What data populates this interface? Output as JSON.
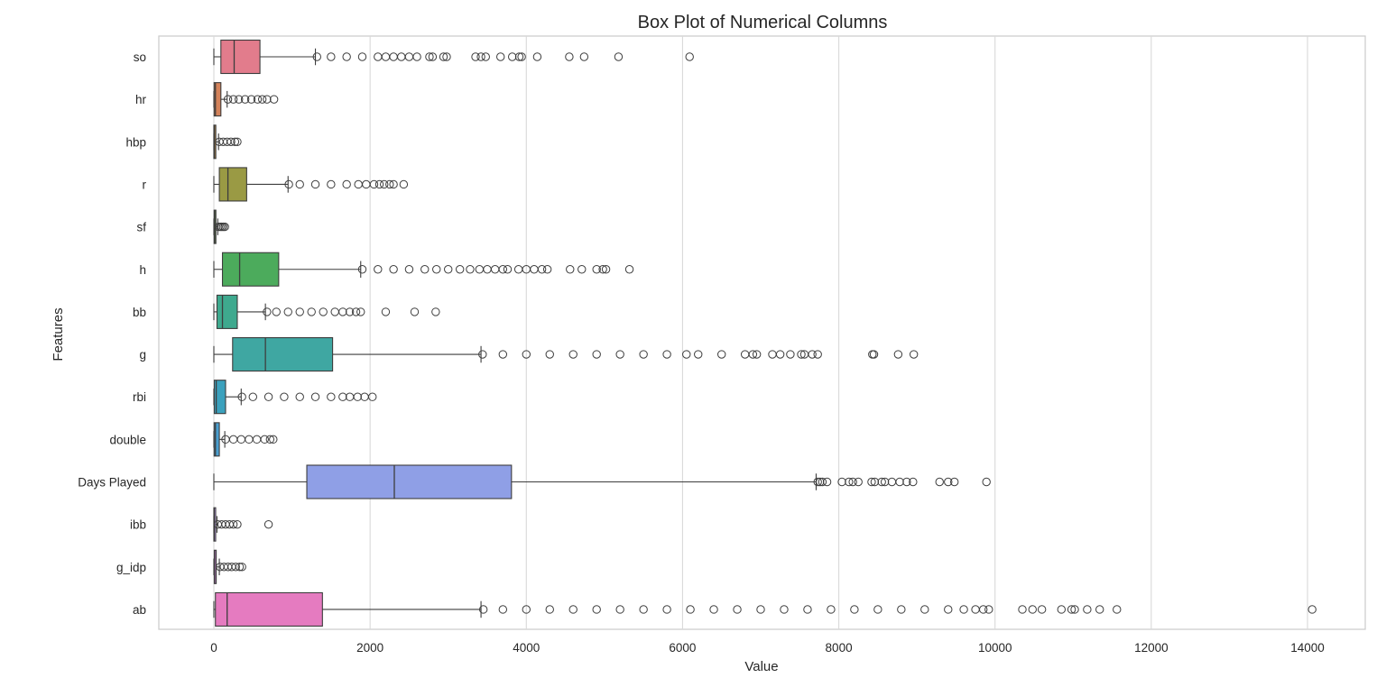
{
  "chart_data": {
    "type": "box",
    "orientation": "horizontal",
    "title": "Box Plot of Numerical Columns",
    "xlabel": "Value",
    "ylabel": "Features",
    "xlim": [
      -700,
      14700
    ],
    "xticks": [
      0,
      2000,
      4000,
      6000,
      8000,
      10000,
      12000,
      14000
    ],
    "xtick_labels": [
      "0",
      "2000",
      "4000",
      "6000",
      "8000",
      "10000",
      "12000",
      "14000"
    ],
    "grid": "vertical",
    "legend": "none",
    "series": [
      {
        "name": "so",
        "color": "#e27c8c",
        "min": 0,
        "q1": 90,
        "median": 260,
        "q3": 590,
        "max": 1300,
        "outliers": [
          1320,
          1500,
          1700,
          1900,
          2100,
          2200,
          2300,
          2400,
          2500,
          2600,
          2760,
          2800,
          2940,
          2980,
          3350,
          3420,
          3480,
          3670,
          3820,
          3910,
          3940,
          4140,
          4550,
          4740,
          5180,
          6090
        ]
      },
      {
        "name": "hr",
        "color": "#d4825a",
        "min": 0,
        "q1": 3,
        "median": 20,
        "q3": 90,
        "max": 170,
        "outliers": [
          180,
          250,
          320,
          400,
          480,
          560,
          620,
          680,
          770
        ]
      },
      {
        "name": "hbp",
        "color": "#bf8f45",
        "min": 0,
        "q1": 0,
        "median": 6,
        "q3": 25,
        "max": 60,
        "outliers": [
          70,
          120,
          170,
          220,
          270,
          300
        ]
      },
      {
        "name": "r",
        "color": "#9a9a44",
        "min": 0,
        "q1": 70,
        "median": 180,
        "q3": 420,
        "max": 950,
        "outliers": [
          960,
          1100,
          1300,
          1500,
          1700,
          1850,
          1950,
          2050,
          2120,
          2180,
          2250,
          2300,
          2430
        ]
      },
      {
        "name": "sf",
        "color": "#6fa246",
        "min": 0,
        "q1": 3,
        "median": 10,
        "q3": 25,
        "max": 50,
        "outliers": [
          60,
          80,
          100,
          120,
          140
        ]
      },
      {
        "name": "h",
        "color": "#4cab5c",
        "min": 0,
        "q1": 110,
        "median": 330,
        "q3": 830,
        "max": 1880,
        "outliers": [
          1900,
          2100,
          2300,
          2500,
          2700,
          2850,
          3000,
          3150,
          3280,
          3400,
          3500,
          3600,
          3700,
          3760,
          3900,
          4000,
          4100,
          4200,
          4270,
          4560,
          4710,
          4900,
          4980,
          5020,
          5320
        ]
      },
      {
        "name": "bb",
        "color": "#3ea98e",
        "min": 0,
        "q1": 40,
        "median": 110,
        "q3": 300,
        "max": 660,
        "outliers": [
          680,
          800,
          950,
          1100,
          1250,
          1400,
          1550,
          1650,
          1740,
          1820,
          1880,
          2200,
          2570,
          2840
        ]
      },
      {
        "name": "g",
        "color": "#3fa7a2",
        "min": 0,
        "q1": 240,
        "median": 660,
        "q3": 1520,
        "max": 3420,
        "outliers": [
          3440,
          3700,
          4000,
          4300,
          4600,
          4900,
          5200,
          5500,
          5800,
          6050,
          6200,
          6500,
          6800,
          6900,
          6950,
          7150,
          7250,
          7380,
          7520,
          7560,
          7660,
          7730,
          8430,
          8450,
          8760,
          8960
        ]
      },
      {
        "name": "rbi",
        "color": "#3ba1bd",
        "min": 0,
        "q1": 5,
        "median": 30,
        "q3": 150,
        "max": 350,
        "outliers": [
          360,
          500,
          700,
          900,
          1100,
          1300,
          1500,
          1650,
          1740,
          1840,
          1930,
          2030
        ]
      },
      {
        "name": "double",
        "color": "#4a9fd0",
        "min": 0,
        "q1": 3,
        "median": 20,
        "q3": 70,
        "max": 140,
        "outliers": [
          150,
          250,
          350,
          450,
          550,
          650,
          720,
          760
        ]
      },
      {
        "name": "Days Played",
        "color": "#8f9fe6",
        "min": 0,
        "q1": 1190,
        "median": 2310,
        "q3": 3810,
        "max": 7710,
        "outliers": [
          7730,
          7760,
          7790,
          7850,
          8040,
          8130,
          8180,
          8250,
          8420,
          8460,
          8550,
          8590,
          8680,
          8780,
          8870,
          8950,
          9290,
          9400,
          9480,
          9890
        ]
      },
      {
        "name": "ibb",
        "color": "#b48ee2",
        "min": 0,
        "q1": 0,
        "median": 4,
        "q3": 15,
        "max": 40,
        "outliers": [
          50,
          100,
          150,
          200,
          250,
          300,
          700
        ]
      },
      {
        "name": "g_idp",
        "color": "#d58ae0",
        "min": 0,
        "q1": 5,
        "median": 10,
        "q3": 30,
        "max": 70,
        "outliers": [
          80,
          130,
          180,
          230,
          280,
          330,
          360
        ]
      },
      {
        "name": "ab",
        "color": "#e57bc0",
        "min": 0,
        "q1": 20,
        "median": 170,
        "q3": 1390,
        "max": 3420,
        "outliers": [
          3450,
          3700,
          4000,
          4300,
          4600,
          4900,
          5200,
          5500,
          5800,
          6100,
          6400,
          6700,
          7000,
          7300,
          7600,
          7900,
          8200,
          8500,
          8800,
          9100,
          9400,
          9600,
          9750,
          9850,
          9920,
          10350,
          10480,
          10600,
          10850,
          10980,
          11020,
          11180,
          11340,
          11560,
          14060
        ]
      }
    ]
  }
}
